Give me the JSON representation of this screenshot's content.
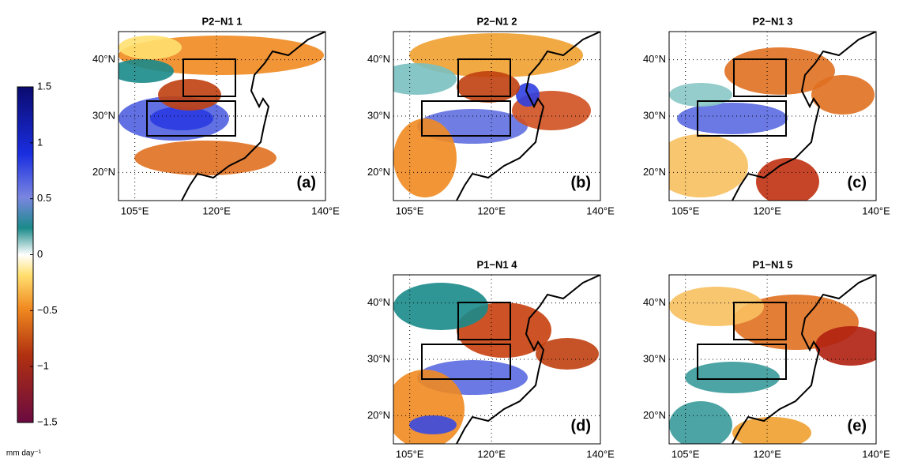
{
  "map": {
    "xlim": [
      102,
      140
    ],
    "xticks": [
      {
        "value": 105,
        "label": "105°E"
      },
      {
        "value": 120,
        "label": "120°E"
      },
      {
        "value": 140,
        "label": "140°E"
      }
    ],
    "ylim": [
      15,
      45
    ],
    "yticks": [
      {
        "value": 20,
        "label": "20°N"
      },
      {
        "value": 30,
        "label": "30°N"
      },
      {
        "value": 40,
        "label": "40°N"
      }
    ]
  },
  "panels": [
    {
      "title": "P2−N1  1",
      "label": "(a)"
    },
    {
      "title": "P2−N1  2",
      "label": "(b)"
    },
    {
      "title": "P2−N1  3",
      "label": "(c)"
    },
    {
      "title": "P1−N1  4",
      "label": "(d)"
    },
    {
      "title": "P1−N1  5",
      "label": "(e)"
    }
  ],
  "colorbar": {
    "ylim": [
      -1.5,
      1.5
    ],
    "yticks": [
      1.5,
      1,
      0.5,
      0,
      {
        "value": -0.5,
        "label": "−0.5"
      },
      {
        "value": -1,
        "label": "−1"
      },
      {
        "value": -1.5,
        "label": "−1.5"
      }
    ],
    "unit": "mm day⁻¹"
  }
}
